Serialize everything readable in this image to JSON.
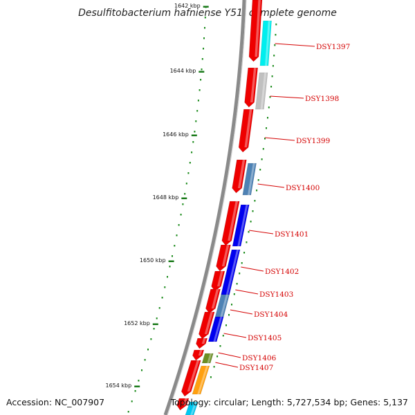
{
  "title": "Desulfitobacterium hafniense Y51, complete genome",
  "accession": "Accession: NC_007907",
  "topology": "Topology: circular; Length: 5,727,534 bp; Genes: 5,137",
  "ruler": {
    "labels": [
      "1642 kbp",
      "1644 kbp",
      "1646 kbp",
      "1648 kbp",
      "1650 kbp",
      "1652 kbp",
      "1654 kbp"
    ],
    "major_color": "#1a7a1a",
    "minor_color": "#1a8a1a"
  },
  "colors": {
    "backbone": "#8a8a8a",
    "cds_forward": "#ee0000",
    "label_text": "#d40000",
    "cyan": "#00eeee",
    "gray": "#c0c0c0",
    "steelblue": "#4e82b4",
    "blue": "#0000ee",
    "olive": "#6b8e23",
    "orange": "#ffa010"
  },
  "genes": [
    "DSY1397",
    "DSY1398",
    "DSY1399",
    "DSY1400",
    "DSY1401",
    "DSY1402",
    "DSY1403",
    "DSY1404",
    "DSY1405",
    "DSY1406",
    "DSY1407"
  ]
}
